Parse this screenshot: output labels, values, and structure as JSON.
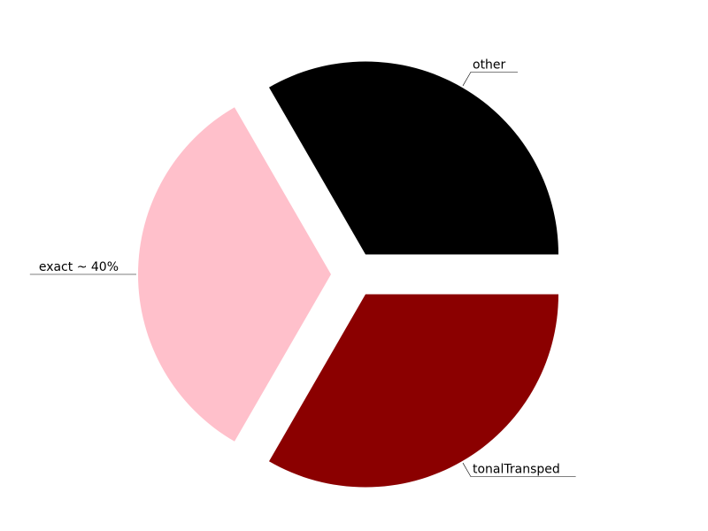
{
  "chart_data": {
    "type": "pie",
    "exploded": true,
    "categories": [
      "other",
      "exact ~ 40%",
      "tonalTransped"
    ],
    "values": [
      33.333,
      33.333,
      33.333
    ],
    "colors": [
      "#000000",
      "#ffc0cb",
      "#8b0000"
    ],
    "start_angle_deg": 0,
    "direction": "counterclockwise",
    "label_placement": "outside with leader lines",
    "legend": "none"
  }
}
